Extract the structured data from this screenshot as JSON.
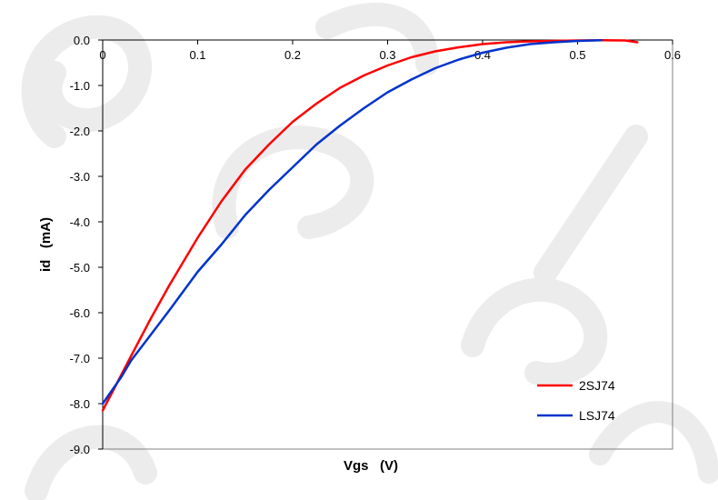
{
  "chart_data": {
    "type": "line",
    "xlabel": "Vgs   (V)",
    "ylabel": "id   (mA)",
    "xlim": [
      0,
      0.6
    ],
    "ylim": [
      -9,
      0
    ],
    "x_ticks": [
      "0",
      "0.1",
      "0.2",
      "0.3",
      "0.4",
      "0.5",
      "0.6"
    ],
    "y_ticks": [
      "0.0",
      "-1.0",
      "-2.0",
      "-3.0",
      "-4.0",
      "-5.0",
      "-6.0",
      "-7.0",
      "-8.0",
      "-9.0"
    ],
    "x_tick_values": [
      0,
      0.1,
      0.2,
      0.3,
      0.4,
      0.5,
      0.6
    ],
    "y_tick_values": [
      0,
      -1,
      -2,
      -3,
      -4,
      -5,
      -6,
      -7,
      -8,
      -9
    ],
    "grid": false,
    "legend_position": "bottom-right",
    "series": [
      {
        "name": "2SJ74",
        "color": "#ff0000",
        "x": [
          0,
          0.01,
          0.02,
          0.03,
          0.05,
          0.07,
          0.1,
          0.125,
          0.15,
          0.175,
          0.2,
          0.225,
          0.25,
          0.275,
          0.3,
          0.325,
          0.35,
          0.375,
          0.4,
          0.425,
          0.45,
          0.475,
          0.5,
          0.525,
          0.55,
          0.563
        ],
        "y": [
          -8.15,
          -7.75,
          -7.35,
          -6.95,
          -6.15,
          -5.4,
          -4.35,
          -3.55,
          -2.85,
          -2.3,
          -1.8,
          -1.4,
          -1.05,
          -0.78,
          -0.56,
          -0.38,
          -0.25,
          -0.16,
          -0.09,
          -0.05,
          -0.03,
          -0.02,
          -0.01,
          -0.005,
          -0.01,
          -0.05
        ]
      },
      {
        "name": "LSJ74",
        "color": "#0033cc",
        "x": [
          0,
          0.01,
          0.02,
          0.03,
          0.05,
          0.07,
          0.1,
          0.125,
          0.15,
          0.175,
          0.2,
          0.225,
          0.25,
          0.275,
          0.3,
          0.325,
          0.35,
          0.375,
          0.4,
          0.425,
          0.45,
          0.475,
          0.5,
          0.525
        ],
        "y": [
          -8.0,
          -7.7,
          -7.4,
          -7.05,
          -6.5,
          -5.95,
          -5.1,
          -4.5,
          -3.85,
          -3.3,
          -2.8,
          -2.3,
          -1.88,
          -1.5,
          -1.15,
          -0.87,
          -0.62,
          -0.43,
          -0.28,
          -0.17,
          -0.09,
          -0.05,
          -0.02,
          -0.005
        ]
      }
    ]
  }
}
